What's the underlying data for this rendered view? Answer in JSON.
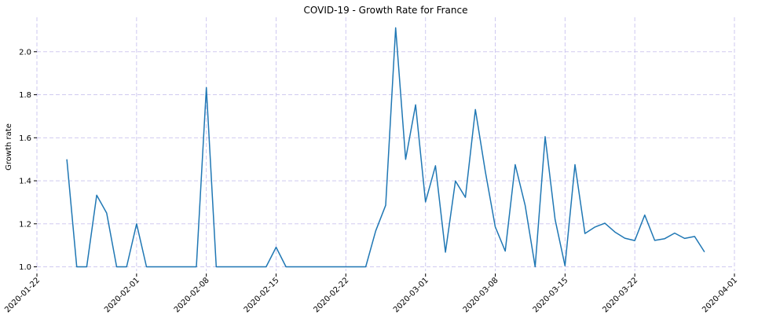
{
  "chart_data": {
    "type": "line",
    "title": "COVID-19 - Growth Rate for France",
    "xlabel": "",
    "ylabel": "Growth rate",
    "x_tick_labels": [
      "2020-01-22",
      "2020-02-01",
      "2020-02-08",
      "2020-02-15",
      "2020-02-22",
      "2020-03-01",
      "2020-03-08",
      "2020-03-15",
      "2020-03-22",
      "2020-04-01"
    ],
    "y_tick_labels": [
      "1.0",
      "1.2",
      "1.4",
      "1.6",
      "1.8",
      "2.0"
    ],
    "xlim": [
      "2020-01-22",
      "2020-04-01"
    ],
    "ylim": [
      0.98,
      2.16
    ],
    "grid": true,
    "series": [
      {
        "color": "#1f77b4",
        "x": [
          "2020-01-25",
          "2020-01-26",
          "2020-01-27",
          "2020-01-28",
          "2020-01-29",
          "2020-01-30",
          "2020-01-31",
          "2020-02-01",
          "2020-02-02",
          "2020-02-03",
          "2020-02-04",
          "2020-02-05",
          "2020-02-06",
          "2020-02-07",
          "2020-02-08",
          "2020-02-09",
          "2020-02-10",
          "2020-02-11",
          "2020-02-12",
          "2020-02-13",
          "2020-02-14",
          "2020-02-15",
          "2020-02-16",
          "2020-02-17",
          "2020-02-18",
          "2020-02-19",
          "2020-02-20",
          "2020-02-21",
          "2020-02-22",
          "2020-02-23",
          "2020-02-24",
          "2020-02-25",
          "2020-02-26",
          "2020-02-27",
          "2020-02-28",
          "2020-02-29",
          "2020-03-01",
          "2020-03-02",
          "2020-03-03",
          "2020-03-04",
          "2020-03-05",
          "2020-03-06",
          "2020-03-07",
          "2020-03-08",
          "2020-03-09",
          "2020-03-10",
          "2020-03-11",
          "2020-03-12",
          "2020-03-13",
          "2020-03-14",
          "2020-03-15",
          "2020-03-16",
          "2020-03-17",
          "2020-03-18",
          "2020-03-19",
          "2020-03-20",
          "2020-03-21",
          "2020-03-22",
          "2020-03-23",
          "2020-03-24",
          "2020-03-25",
          "2020-03-26",
          "2020-03-27",
          "2020-03-28",
          "2020-03-29"
        ],
        "values": [
          1.5,
          1.0,
          1.0,
          1.333,
          1.25,
          1.0,
          1.0,
          1.2,
          1.0,
          1.0,
          1.0,
          1.0,
          1.0,
          1.0,
          1.833,
          1.0,
          1.0,
          1.0,
          1.0,
          1.0,
          1.0,
          1.091,
          1.0,
          1.0,
          1.0,
          1.0,
          1.0,
          1.0,
          1.0,
          1.0,
          1.0,
          1.167,
          1.286,
          2.111,
          1.5,
          1.753,
          1.302,
          1.47,
          1.068,
          1.399,
          1.323,
          1.731,
          1.442,
          1.186,
          1.073,
          1.475,
          1.285,
          1.0,
          1.605,
          1.22,
          1.005,
          1.475,
          1.155,
          1.185,
          1.203,
          1.162,
          1.133,
          1.122,
          1.241,
          1.123,
          1.131,
          1.157,
          1.132,
          1.141,
          1.069
        ]
      }
    ]
  }
}
